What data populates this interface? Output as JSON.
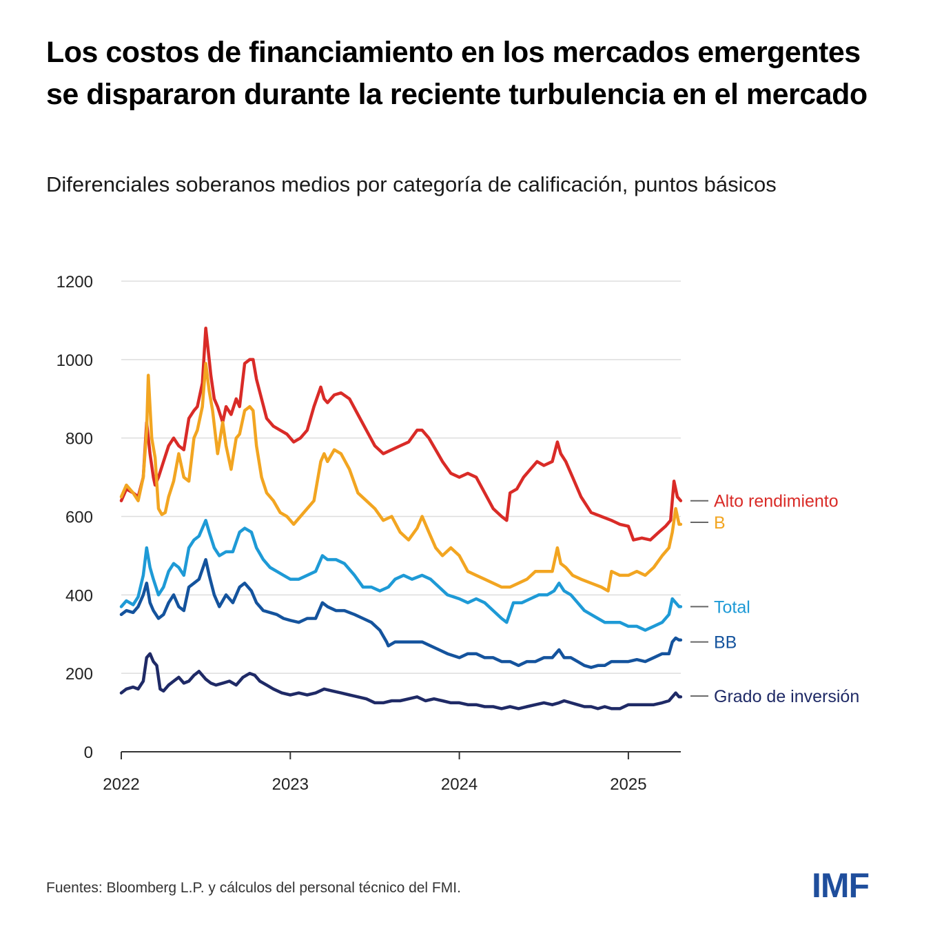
{
  "title": "Los costos de financiamiento en los mercados emergentes se dispararon durante la reciente turbulencia en el mercado",
  "subtitle": "Diferenciales soberanos medios por categoría de calificación, puntos básicos",
  "footer": "Fuentes: Bloomberg L.P. y cálculos del personal técnico del FMI.",
  "logo": "IMF",
  "chart_data": {
    "type": "line",
    "title": "Diferenciales soberanos medios por categoría de calificación",
    "xlabel": "",
    "ylabel": "puntos básicos",
    "xlim": [
      2022.0,
      2025.32
    ],
    "ylim": [
      0,
      1200
    ],
    "yticks": [
      0,
      200,
      400,
      600,
      800,
      1000,
      1200
    ],
    "ytick_labels": [
      "0",
      "200",
      "400",
      "600",
      "800",
      "1000",
      "1200"
    ],
    "xticks": [
      2022,
      2023,
      2024,
      2025
    ],
    "xtick_labels": [
      "2022",
      "2023",
      "2024",
      "2025"
    ],
    "grid": "horizontal",
    "legend": "right-inline",
    "series": [
      {
        "name": "Alto rendimiento",
        "color": "#d92b27",
        "x": [
          2022.0,
          2022.03,
          2022.07,
          2022.1,
          2022.13,
          2022.15,
          2022.17,
          2022.19,
          2022.2,
          2022.22,
          2022.25,
          2022.28,
          2022.31,
          2022.34,
          2022.37,
          2022.4,
          2022.43,
          2022.45,
          2022.48,
          2022.5,
          2022.52,
          2022.53,
          2022.55,
          2022.57,
          2022.6,
          2022.62,
          2022.65,
          2022.68,
          2022.7,
          2022.73,
          2022.76,
          2022.78,
          2022.8,
          2022.83,
          2022.86,
          2022.9,
          2022.94,
          2022.98,
          2023.02,
          2023.06,
          2023.1,
          2023.14,
          2023.18,
          2023.2,
          2023.22,
          2023.26,
          2023.3,
          2023.35,
          2023.4,
          2023.45,
          2023.5,
          2023.55,
          2023.6,
          2023.65,
          2023.7,
          2023.75,
          2023.78,
          2023.82,
          2023.86,
          2023.9,
          2023.95,
          2024.0,
          2024.05,
          2024.1,
          2024.15,
          2024.2,
          2024.25,
          2024.28,
          2024.3,
          2024.34,
          2024.38,
          2024.42,
          2024.46,
          2024.5,
          2024.55,
          2024.58,
          2024.6,
          2024.63,
          2024.67,
          2024.72,
          2024.78,
          2024.84,
          2024.9,
          2024.95,
          2025.0,
          2025.03,
          2025.08,
          2025.13,
          2025.18,
          2025.22,
          2025.25,
          2025.27,
          2025.29,
          2025.31
        ],
        "y": [
          640,
          670,
          660,
          650,
          700,
          840,
          760,
          700,
          680,
          700,
          740,
          780,
          800,
          780,
          770,
          850,
          870,
          880,
          940,
          1080,
          1000,
          960,
          900,
          880,
          840,
          880,
          860,
          900,
          880,
          990,
          1000,
          1000,
          950,
          900,
          850,
          830,
          820,
          810,
          790,
          800,
          820,
          880,
          930,
          900,
          890,
          910,
          915,
          900,
          860,
          820,
          780,
          760,
          770,
          780,
          790,
          820,
          820,
          800,
          770,
          740,
          710,
          700,
          710,
          700,
          660,
          620,
          600,
          590,
          660,
          670,
          700,
          720,
          740,
          730,
          740,
          790,
          760,
          740,
          700,
          650,
          610,
          600,
          590,
          580,
          575,
          540,
          545,
          540,
          560,
          575,
          590,
          690,
          650,
          640
        ]
      },
      {
        "name": "B",
        "color": "#f2a521",
        "x": [
          2022.0,
          2022.03,
          2022.07,
          2022.1,
          2022.13,
          2022.15,
          2022.16,
          2022.18,
          2022.2,
          2022.22,
          2022.24,
          2022.26,
          2022.28,
          2022.31,
          2022.34,
          2022.37,
          2022.4,
          2022.43,
          2022.45,
          2022.48,
          2022.5,
          2022.52,
          2022.54,
          2022.57,
          2022.6,
          2022.62,
          2022.65,
          2022.68,
          2022.7,
          2022.73,
          2022.76,
          2022.78,
          2022.8,
          2022.83,
          2022.86,
          2022.9,
          2022.94,
          2022.98,
          2023.02,
          2023.06,
          2023.1,
          2023.14,
          2023.18,
          2023.2,
          2023.22,
          2023.26,
          2023.3,
          2023.35,
          2023.4,
          2023.45,
          2023.5,
          2023.55,
          2023.6,
          2023.65,
          2023.7,
          2023.75,
          2023.78,
          2023.82,
          2023.86,
          2023.9,
          2023.95,
          2024.0,
          2024.05,
          2024.1,
          2024.15,
          2024.2,
          2024.25,
          2024.3,
          2024.35,
          2024.4,
          2024.45,
          2024.5,
          2024.55,
          2024.58,
          2024.6,
          2024.63,
          2024.67,
          2024.72,
          2024.78,
          2024.84,
          2024.88,
          2024.9,
          2024.95,
          2025.0,
          2025.05,
          2025.1,
          2025.15,
          2025.2,
          2025.24,
          2025.26,
          2025.28,
          2025.3,
          2025.31
        ],
        "y": [
          650,
          680,
          660,
          640,
          700,
          820,
          960,
          800,
          750,
          620,
          605,
          610,
          650,
          690,
          760,
          700,
          690,
          800,
          820,
          880,
          990,
          920,
          870,
          760,
          840,
          780,
          720,
          800,
          810,
          870,
          880,
          870,
          780,
          700,
          660,
          640,
          610,
          600,
          580,
          600,
          620,
          640,
          740,
          760,
          740,
          770,
          760,
          720,
          660,
          640,
          620,
          590,
          600,
          560,
          540,
          570,
          600,
          560,
          520,
          500,
          520,
          500,
          460,
          450,
          440,
          430,
          420,
          420,
          430,
          440,
          460,
          460,
          460,
          520,
          480,
          470,
          450,
          440,
          430,
          420,
          410,
          460,
          450,
          450,
          460,
          450,
          470,
          500,
          520,
          560,
          620,
          580,
          580
        ]
      },
      {
        "name": "Total",
        "color": "#1e9ad6",
        "x": [
          2022.0,
          2022.03,
          2022.07,
          2022.1,
          2022.13,
          2022.15,
          2022.17,
          2022.19,
          2022.22,
          2022.25,
          2022.28,
          2022.31,
          2022.34,
          2022.37,
          2022.4,
          2022.43,
          2022.46,
          2022.5,
          2022.52,
          2022.55,
          2022.58,
          2022.62,
          2022.66,
          2022.7,
          2022.73,
          2022.77,
          2022.8,
          2022.84,
          2022.88,
          2022.92,
          2022.96,
          2023.0,
          2023.05,
          2023.1,
          2023.15,
          2023.19,
          2023.22,
          2023.27,
          2023.32,
          2023.38,
          2023.43,
          2023.48,
          2023.53,
          2023.58,
          2023.62,
          2023.67,
          2023.72,
          2023.78,
          2023.83,
          2023.88,
          2023.93,
          2024.0,
          2024.05,
          2024.1,
          2024.15,
          2024.2,
          2024.25,
          2024.28,
          2024.32,
          2024.37,
          2024.42,
          2024.47,
          2024.52,
          2024.56,
          2024.59,
          2024.62,
          2024.66,
          2024.7,
          2024.74,
          2024.78,
          2024.82,
          2024.86,
          2024.9,
          2024.95,
          2025.0,
          2025.05,
          2025.1,
          2025.15,
          2025.2,
          2025.24,
          2025.26,
          2025.28,
          2025.3,
          2025.31
        ],
        "y": [
          370,
          385,
          375,
          395,
          450,
          520,
          470,
          440,
          400,
          420,
          460,
          480,
          470,
          450,
          520,
          540,
          550,
          590,
          560,
          520,
          500,
          510,
          510,
          560,
          570,
          560,
          520,
          490,
          470,
          460,
          450,
          440,
          440,
          450,
          460,
          500,
          490,
          490,
          480,
          450,
          420,
          420,
          410,
          420,
          440,
          450,
          440,
          450,
          440,
          420,
          400,
          390,
          380,
          390,
          380,
          360,
          340,
          330,
          380,
          380,
          390,
          400,
          400,
          410,
          430,
          410,
          400,
          380,
          360,
          350,
          340,
          330,
          330,
          330,
          320,
          320,
          310,
          320,
          330,
          350,
          390,
          380,
          370,
          370
        ]
      },
      {
        "name": "BB",
        "color": "#14539d",
        "x": [
          2022.0,
          2022.03,
          2022.07,
          2022.1,
          2022.13,
          2022.15,
          2022.17,
          2022.19,
          2022.22,
          2022.25,
          2022.28,
          2022.31,
          2022.34,
          2022.37,
          2022.4,
          2022.43,
          2022.46,
          2022.5,
          2022.52,
          2022.55,
          2022.58,
          2022.62,
          2022.66,
          2022.7,
          2022.73,
          2022.77,
          2022.8,
          2022.84,
          2022.88,
          2022.92,
          2022.96,
          2023.0,
          2023.05,
          2023.1,
          2023.15,
          2023.19,
          2023.22,
          2023.27,
          2023.32,
          2023.38,
          2023.43,
          2023.48,
          2023.53,
          2023.57,
          2023.58,
          2023.62,
          2023.67,
          2023.72,
          2023.78,
          2023.83,
          2023.88,
          2023.93,
          2024.0,
          2024.05,
          2024.1,
          2024.15,
          2024.2,
          2024.25,
          2024.3,
          2024.35,
          2024.4,
          2024.45,
          2024.5,
          2024.55,
          2024.59,
          2024.62,
          2024.66,
          2024.7,
          2024.74,
          2024.78,
          2024.82,
          2024.86,
          2024.9,
          2024.95,
          2025.0,
          2025.05,
          2025.1,
          2025.15,
          2025.2,
          2025.24,
          2025.26,
          2025.28,
          2025.3,
          2025.31
        ],
        "y": [
          350,
          360,
          355,
          370,
          400,
          430,
          380,
          360,
          340,
          350,
          380,
          400,
          370,
          360,
          420,
          430,
          440,
          490,
          450,
          400,
          370,
          400,
          380,
          420,
          430,
          410,
          380,
          360,
          355,
          350,
          340,
          335,
          330,
          340,
          340,
          380,
          370,
          360,
          360,
          350,
          340,
          330,
          310,
          280,
          270,
          280,
          280,
          280,
          280,
          270,
          260,
          250,
          240,
          250,
          250,
          240,
          240,
          230,
          230,
          220,
          230,
          230,
          240,
          240,
          260,
          240,
          240,
          230,
          220,
          215,
          220,
          220,
          230,
          230,
          230,
          235,
          230,
          240,
          250,
          250,
          280,
          290,
          285,
          285
        ]
      },
      {
        "name": "Grado de inversión",
        "color": "#1f2a66",
        "x": [
          2022.0,
          2022.03,
          2022.07,
          2022.1,
          2022.13,
          2022.15,
          2022.17,
          2022.19,
          2022.21,
          2022.23,
          2022.25,
          2022.28,
          2022.31,
          2022.34,
          2022.37,
          2022.4,
          2022.43,
          2022.46,
          2022.5,
          2022.53,
          2022.56,
          2022.6,
          2022.64,
          2022.68,
          2022.72,
          2022.76,
          2022.79,
          2022.82,
          2022.86,
          2022.9,
          2022.95,
          2023.0,
          2023.05,
          2023.1,
          2023.15,
          2023.2,
          2023.25,
          2023.3,
          2023.35,
          2023.4,
          2023.45,
          2023.5,
          2023.55,
          2023.6,
          2023.65,
          2023.7,
          2023.75,
          2023.8,
          2023.85,
          2023.9,
          2023.95,
          2024.0,
          2024.05,
          2024.1,
          2024.15,
          2024.2,
          2024.25,
          2024.3,
          2024.35,
          2024.4,
          2024.45,
          2024.5,
          2024.55,
          2024.59,
          2024.62,
          2024.66,
          2024.7,
          2024.74,
          2024.78,
          2024.82,
          2024.86,
          2024.9,
          2024.95,
          2025.0,
          2025.05,
          2025.1,
          2025.15,
          2025.2,
          2025.24,
          2025.26,
          2025.28,
          2025.3,
          2025.31
        ],
        "y": [
          150,
          160,
          165,
          160,
          180,
          240,
          250,
          230,
          220,
          160,
          155,
          170,
          180,
          190,
          175,
          180,
          195,
          205,
          185,
          175,
          170,
          175,
          180,
          170,
          190,
          200,
          195,
          180,
          170,
          160,
          150,
          145,
          150,
          145,
          150,
          160,
          155,
          150,
          145,
          140,
          135,
          125,
          125,
          130,
          130,
          135,
          140,
          130,
          135,
          130,
          125,
          125,
          120,
          120,
          115,
          115,
          110,
          115,
          110,
          115,
          120,
          125,
          120,
          125,
          130,
          125,
          120,
          115,
          115,
          110,
          115,
          110,
          110,
          120,
          120,
          120,
          120,
          125,
          130,
          140,
          150,
          140,
          140
        ]
      }
    ]
  }
}
